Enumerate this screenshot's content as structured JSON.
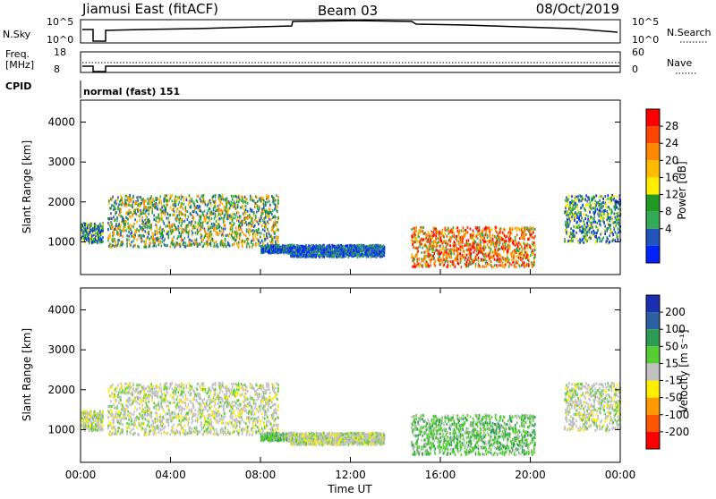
{
  "header": {
    "station": "Jiamusi East (fitACF)",
    "beam": "Beam 03",
    "date": "08/Oct/2019"
  },
  "status_panels": {
    "nsky_label": "N.Sky",
    "nsearch_label": "N.Search",
    "noise_ticks": [
      "10^5",
      "10^0"
    ],
    "freq_label": "Freq.",
    "freq_unit": "[MHz]",
    "freq_ticks": [
      "18",
      "8"
    ],
    "nave_label": "Nave",
    "nave_ticks": [
      "60",
      "0"
    ],
    "cpid_label": "CPID",
    "cpid_value": "normal (fast) 151"
  },
  "chart_data": {
    "type": "heatmap",
    "x_label": "Time UT",
    "x_ticks": [
      "00:00",
      "04:00",
      "08:00",
      "12:00",
      "16:00",
      "20:00",
      "00:00"
    ],
    "x_range_hours": [
      0,
      24
    ],
    "y_label": "Slant Range [km]",
    "y_ticks": [
      1000,
      2000,
      3000,
      4000
    ],
    "y_range_km": [
      180,
      4550
    ],
    "panels": [
      {
        "id": "power",
        "colorbar_label": "Power [dB]",
        "colorbar_ticks": [
          "28",
          "24",
          "20",
          "16",
          "12",
          "8",
          "4"
        ],
        "colorbar_colors": [
          "#ff0000",
          "#ff4400",
          "#ff8800",
          "#ffbb00",
          "#ffee00",
          "#229922",
          "#33aa55",
          "#2255bb",
          "#0022ff"
        ]
      },
      {
        "id": "velocity",
        "colorbar_label": "Velocity [m s⁻¹]",
        "colorbar_ticks": [
          "200",
          "100",
          "50",
          "15",
          "-15",
          "-50",
          "-100",
          "-200"
        ],
        "colorbar_colors": [
          "#1a2fb0",
          "#2a5fa0",
          "#2f9a55",
          "#55cc33",
          "#c0c0c0",
          "#ffee00",
          "#ff9900",
          "#ff5500",
          "#ff0000"
        ]
      }
    ],
    "echo_regions": [
      {
        "name": "band-early",
        "t0": 0.0,
        "t1": 1.0,
        "r0": 1000,
        "r1": 1500,
        "power": "green-blue",
        "velocity": "gray"
      },
      {
        "name": "band-morning",
        "t0": 1.2,
        "t1": 8.8,
        "r0": 900,
        "r1": 2200,
        "power": "orange-green",
        "velocity": "gray"
      },
      {
        "name": "patch-09",
        "t0": 8.0,
        "t1": 9.4,
        "r0": 750,
        "r1": 950,
        "power": "blue",
        "velocity": "green"
      },
      {
        "name": "patch-11",
        "t0": 9.2,
        "t1": 13.5,
        "r0": 650,
        "r1": 950,
        "power": "blue",
        "velocity": "gray"
      },
      {
        "name": "band-evening",
        "t0": 14.7,
        "t1": 20.2,
        "r0": 400,
        "r1": 1400,
        "power": "red-orange",
        "velocity": "green"
      },
      {
        "name": "tail-late",
        "t0": 21.5,
        "t1": 24.0,
        "r0": 1000,
        "r1": 2200,
        "power": "green-blue",
        "velocity": "gray"
      }
    ]
  }
}
